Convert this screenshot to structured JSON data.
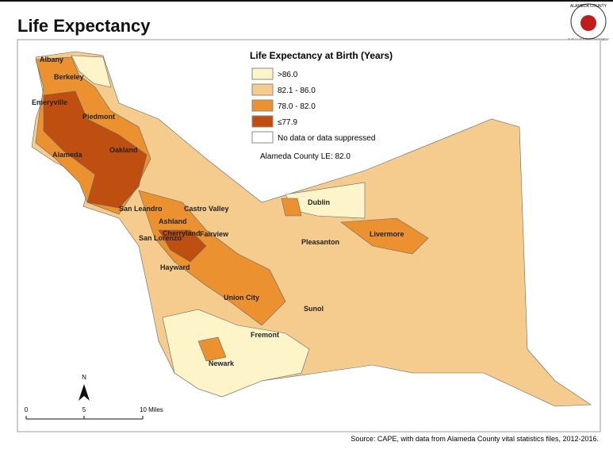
{
  "header": {
    "title": "Life Expectancy",
    "logo_top": "ALAMEDA COUNTY",
    "logo_bottom": "PUBLIC HEALTH DEPARTMENT"
  },
  "legend": {
    "title": "Life Expectancy at Birth (Years)",
    "items": [
      {
        "label": ">86.0",
        "color": "#fdf5c9"
      },
      {
        "label": "82.1 - 86.0",
        "color": "#f6cc8e"
      },
      {
        "label": "78.0 - 82.0",
        "color": "#ec9130"
      },
      {
        "label": "≤77.9",
        "color": "#bf4f10"
      },
      {
        "label": "No data or data suppressed",
        "color": "#ffffff"
      }
    ],
    "note": "Alameda County LE: 82.0"
  },
  "places": [
    {
      "label": "Albany"
    },
    {
      "label": "Berkeley"
    },
    {
      "label": "Emeryville"
    },
    {
      "label": "Piedmont"
    },
    {
      "label": "Oakland"
    },
    {
      "label": "Alameda"
    },
    {
      "label": "San Leandro"
    },
    {
      "label": "Castro Valley"
    },
    {
      "label": "Ashland"
    },
    {
      "label": "Cherryland"
    },
    {
      "label": "San Lorenzo"
    },
    {
      "label": "Fairview"
    },
    {
      "label": "Hayward"
    },
    {
      "label": "Union City"
    },
    {
      "label": "Fremont"
    },
    {
      "label": "Newark"
    },
    {
      "label": "Dublin"
    },
    {
      "label": "Pleasanton"
    },
    {
      "label": "Livermore"
    },
    {
      "label": "Sunol"
    }
  ],
  "north": "N",
  "scale": {
    "labels": [
      "0",
      "5",
      "10 Miles"
    ]
  },
  "source": "Source: CAPE, with data from Alameda County vital statistics files, 2012-2016."
}
